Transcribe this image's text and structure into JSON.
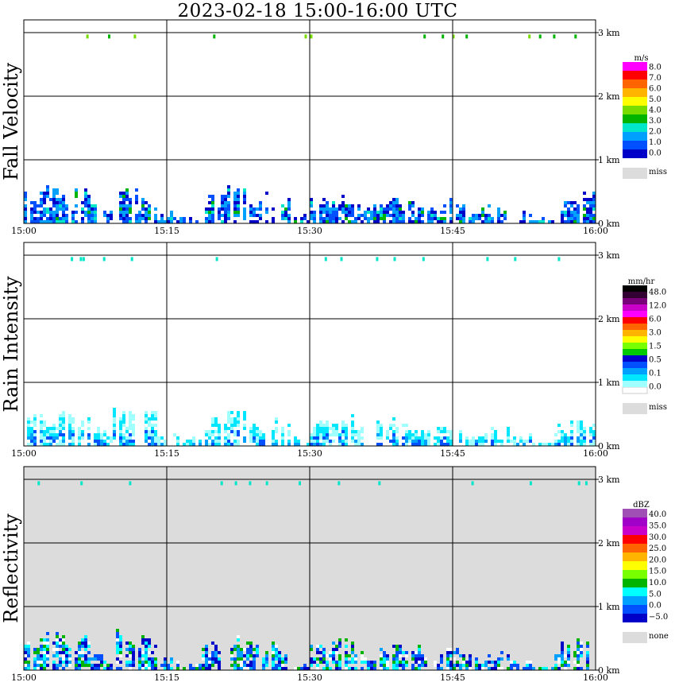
{
  "title": "2023-02-18   15:00-16:00 UTC",
  "chart_data": [
    {
      "type": "heatmap",
      "ylabel": "Fall Velocity",
      "x_ticks": [
        "15:00",
        "15:15",
        "15:30",
        "15:45",
        "16:00"
      ],
      "x_range": [
        "15:00",
        "16:00"
      ],
      "y_ticks": [
        "0 km",
        "1 km",
        "2 km",
        "3 km"
      ],
      "y_range_km": [
        0,
        3.2
      ],
      "background": "#ffffff",
      "colorbar": {
        "unit": "m/s",
        "colors": [
          "#0000c8",
          "#0050ff",
          "#00a0ff",
          "#00e6c8",
          "#00b400",
          "#78dc00",
          "#ffff00",
          "#ffb400",
          "#ff6400",
          "#ff0000",
          "#ff00ff"
        ],
        "labels": [
          "0.0",
          "1.0",
          "2.0",
          "3.0",
          "4.0",
          "5.0",
          "6.0",
          "7.0",
          "8.0"
        ],
        "extra": {
          "color": "#dcdcdc",
          "label": "miss"
        }
      },
      "echo_tops_km": [
        0.55,
        0.6,
        0.55,
        0.3,
        0.6,
        0.55,
        0.2,
        0.15,
        0.45,
        0.6,
        0.5,
        0.45,
        0.15,
        0.4,
        0.5,
        0.3,
        0.45,
        0.4,
        0.3,
        0.4,
        0.25,
        0.3,
        0.2,
        0.1,
        0.45,
        0.5
      ]
    },
    {
      "type": "heatmap",
      "ylabel": "Rain Intensity",
      "x_ticks": [
        "15:00",
        "15:15",
        "15:30",
        "15:45",
        "16:00"
      ],
      "x_range": [
        "15:00",
        "16:00"
      ],
      "y_ticks": [
        "0 km",
        "1 km",
        "2 km",
        "3 km"
      ],
      "y_range_km": [
        0,
        3.2
      ],
      "background": "#ffffff",
      "colorbar": {
        "unit": "mm/hr",
        "colors": [
          "#ffffff",
          "#a0ffff",
          "#00e6ff",
          "#00a0ff",
          "#0050ff",
          "#0000c8",
          "#00c800",
          "#78ff00",
          "#ffff00",
          "#ffb400",
          "#ff6400",
          "#ff0000",
          "#ff00ff",
          "#c800c8",
          "#780078",
          "#320032",
          "#000000"
        ],
        "labels": [
          "0.0",
          "0.1",
          "0.5",
          "1.5",
          "3.0",
          "6.0",
          "12.0",
          "48.0"
        ],
        "extra": {
          "color": "#dcdcdc",
          "label": "miss"
        }
      },
      "echo_tops_km": [
        0.55,
        0.6,
        0.55,
        0.3,
        0.6,
        0.55,
        0.2,
        0.15,
        0.45,
        0.6,
        0.5,
        0.45,
        0.15,
        0.4,
        0.5,
        0.3,
        0.45,
        0.4,
        0.3,
        0.4,
        0.25,
        0.3,
        0.2,
        0.1,
        0.45,
        0.5
      ]
    },
    {
      "type": "heatmap",
      "ylabel": "Reflectivity",
      "x_ticks": [
        "15:00",
        "15:15",
        "15:30",
        "15:45",
        "16:00"
      ],
      "x_range": [
        "15:00",
        "16:00"
      ],
      "y_ticks": [
        "0 km",
        "1 km",
        "2 km",
        "3 km"
      ],
      "y_range_km": [
        0,
        3.2
      ],
      "background": "#dcdcdc",
      "colorbar": {
        "unit": "dBZ",
        "colors": [
          "#0000c8",
          "#0050ff",
          "#00a0ff",
          "#00ffff",
          "#00b400",
          "#78ff00",
          "#ffff00",
          "#ffb400",
          "#ff6400",
          "#ff0000",
          "#c800c8",
          "#a000c8",
          "#a050b4"
        ],
        "labels": [
          "−5.0",
          "0.0",
          "5.0",
          "10.0",
          "15.0",
          "20.0",
          "25.0",
          "30.0",
          "35.0",
          "40.0"
        ],
        "extra": {
          "color": "#dcdcdc",
          "label": "none"
        }
      },
      "echo_tops_km": [
        0.55,
        0.6,
        0.55,
        0.3,
        0.6,
        0.55,
        0.2,
        0.15,
        0.45,
        0.6,
        0.5,
        0.45,
        0.15,
        0.4,
        0.5,
        0.3,
        0.45,
        0.4,
        0.3,
        0.4,
        0.25,
        0.3,
        0.2,
        0.1,
        0.45,
        0.5
      ]
    }
  ]
}
